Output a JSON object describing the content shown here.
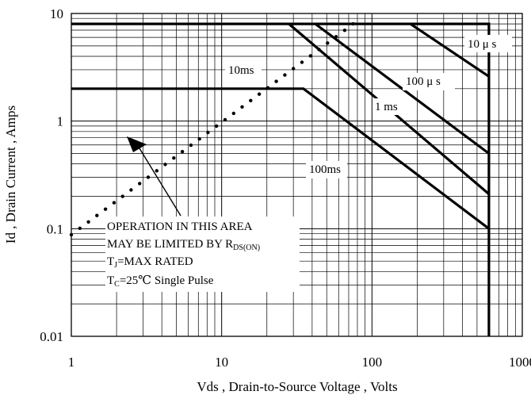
{
  "chart_data": {
    "type": "line",
    "xscale": "log",
    "yscale": "log",
    "xlim": [
      1,
      1000
    ],
    "ylim": [
      0.01,
      10
    ],
    "grid": true,
    "xlabel": "Vds , Drain-to-Source Voltage , Volts",
    "ylabel": "Id , Drain Current , Amps",
    "x_ticks": [
      "1",
      "10",
      "100",
      "1000"
    ],
    "y_ticks": [
      "0.01",
      "0.1",
      "1",
      "10"
    ],
    "series": [
      {
        "name": "10μs",
        "points": [
          [
            1,
            8
          ],
          [
            600,
            8
          ],
          [
            600,
            0.01
          ]
        ]
      },
      {
        "name": "100μs",
        "points": [
          [
            180,
            8
          ],
          [
            600,
            2.6
          ]
        ]
      },
      {
        "name": "1 ms",
        "points": [
          [
            42,
            8
          ],
          [
            600,
            0.5
          ]
        ]
      },
      {
        "name": "10ms",
        "points": [
          [
            28,
            8
          ],
          [
            600,
            0.21
          ]
        ]
      },
      {
        "name": "100ms",
        "points": [
          [
            1,
            2
          ],
          [
            35,
            2
          ],
          [
            600,
            0.1
          ]
        ]
      }
    ],
    "rds_limit_line": {
      "points": [
        [
          1,
          0.088
        ],
        [
          75,
          8
        ]
      ]
    },
    "annotation_lines": [
      "OPERATION IN THIS AREA",
      "MAY BE LIMITED BY R",
      "T",
      "=MAX RATED",
      "T",
      "=25℃  Single Pulse"
    ],
    "annotation_subscripts": [
      "DS(ON)",
      "J",
      "C"
    ]
  },
  "labels": {
    "curve_10us": "10 μ s",
    "curve_100us": "100 μ s",
    "curve_1ms": "1 ms",
    "curve_10ms": "10ms",
    "curve_100ms": "100ms"
  }
}
